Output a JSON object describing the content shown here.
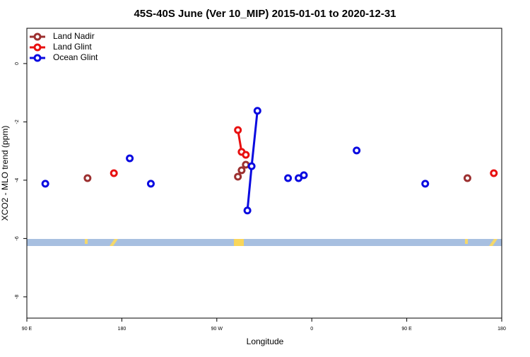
{
  "chart_data": {
    "type": "line",
    "title": "45S-40S June (Ver 10_MIP)   2015-01-01 to 2020-12-31",
    "xlabel": "Longitude",
    "ylabel": "XCO2 - MLO trend (ppm)",
    "xlim": [
      90,
      540
    ],
    "ylim": [
      -8.73,
      1.21
    ],
    "xticks": [
      {
        "value": 90,
        "label": "90 E"
      },
      {
        "value": 180,
        "label": "180"
      },
      {
        "value": 270,
        "label": "90 W"
      },
      {
        "value": 360,
        "label": "0"
      },
      {
        "value": 450,
        "label": "90 E"
      },
      {
        "value": 540,
        "label": "180"
      }
    ],
    "yticks": [
      0,
      -2,
      -4,
      -6,
      -8
    ],
    "legend": "top-left",
    "series": [
      {
        "name": "Land Nadir",
        "color": "#9c3030",
        "x": [
          147.5,
          null,
          290,
          293.5,
          297.5,
          null,
          507.5
        ],
        "values": [
          -3.93,
          null,
          -3.88,
          -3.66,
          -3.47,
          null,
          -3.93
        ]
      },
      {
        "name": "Land Glint",
        "color": "#e81010",
        "x": [
          172.5,
          null,
          290,
          293.5,
          297.5,
          null,
          532.5
        ],
        "values": [
          -3.76,
          null,
          -2.28,
          -3.03,
          -3.13,
          null,
          -3.76
        ]
      },
      {
        "name": "Ocean Glint",
        "color": "#0a0ae0",
        "x": [
          107.5,
          null,
          187.5,
          null,
          207.5,
          null,
          299,
          303,
          308.5,
          null,
          337.5,
          null,
          347.5,
          null,
          352.5,
          null,
          402.5,
          null,
          467.5
        ],
        "values": [
          -4.12,
          null,
          -3.25,
          null,
          -4.12,
          null,
          -5.04,
          -3.52,
          -1.62,
          null,
          -3.93,
          null,
          -3.93,
          null,
          -3.83,
          null,
          -2.98,
          null,
          -4.12
        ]
      }
    ]
  }
}
